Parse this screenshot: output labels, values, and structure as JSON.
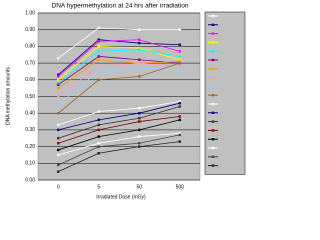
{
  "chart_data": {
    "type": "line",
    "title": "DNA hypermethylation at 24 hrs after irradiation",
    "x_label": "Irradiated Dose (mGy)",
    "y_label": "DNA methylation amounts",
    "categories": [
      "0",
      "5",
      "50",
      "500"
    ],
    "ylim": [
      0,
      1
    ],
    "yticks": [
      {
        "value": 0,
        "label": "0.00"
      },
      {
        "value": 0.1,
        "label": "0.10"
      },
      {
        "value": 0.2,
        "label": "0.20"
      },
      {
        "value": 0.3,
        "label": "0.30"
      },
      {
        "value": 0.4,
        "label": "0.40"
      },
      {
        "value": 0.5,
        "label": "0.50"
      },
      {
        "value": 0.6,
        "label": "0.60"
      },
      {
        "value": 0.7,
        "label": "0.70"
      },
      {
        "value": 0.8,
        "label": "0.80"
      },
      {
        "value": 0.9,
        "label": "0.90"
      },
      {
        "value": 1,
        "label": "1.00"
      }
    ],
    "grid": true,
    "series": [
      {
        "color": "#ffffff",
        "values": [
          0.73,
          0.91,
          0.9,
          0.9
        ]
      },
      {
        "color": "#000080",
        "values": [
          0.63,
          0.84,
          0.82,
          0.81
        ]
      },
      {
        "color": "#ff00ff",
        "values": [
          0.62,
          0.83,
          0.84,
          0.77
        ]
      },
      {
        "color": "#ffff00",
        "values": [
          0.6,
          0.8,
          0.79,
          0.72
        ]
      },
      {
        "color": "#00ffff",
        "values": [
          0.58,
          0.77,
          0.78,
          0.74
        ]
      },
      {
        "color": "#800080",
        "values": [
          0.57,
          0.74,
          0.72,
          0.7
        ]
      },
      {
        "color": "#ff9900",
        "values": [
          0.55,
          0.72,
          0.7,
          0.71
        ]
      },
      {
        "color": "#ff99cc",
        "values": [
          0.5,
          0.68,
          0.7,
          0.68
        ]
      },
      {
        "color": "#99ccff",
        "values": [
          0.45,
          0.65,
          0.67,
          0.66
        ]
      },
      {
        "color": "#996633",
        "values": [
          0.4,
          0.6,
          0.62,
          0.7
        ]
      },
      {
        "color": "#ffffff",
        "values": [
          0.33,
          0.41,
          0.43,
          0.47
        ]
      },
      {
        "color": "#000080",
        "values": [
          0.3,
          0.36,
          0.4,
          0.46
        ]
      },
      {
        "color": "#333333",
        "values": [
          0.25,
          0.33,
          0.37,
          0.44
        ]
      },
      {
        "color": "#800000",
        "values": [
          0.22,
          0.3,
          0.35,
          0.38
        ]
      },
      {
        "color": "#000000",
        "values": [
          0.18,
          0.26,
          0.3,
          0.36
        ]
      },
      {
        "color": "#ffffff",
        "values": [
          0.15,
          0.22,
          0.26,
          0.28
        ]
      },
      {
        "color": "#444444",
        "values": [
          0.09,
          0.2,
          0.22,
          0.27
        ]
      },
      {
        "color": "#222222",
        "values": [
          0.05,
          0.16,
          0.2,
          0.23
        ]
      }
    ]
  }
}
